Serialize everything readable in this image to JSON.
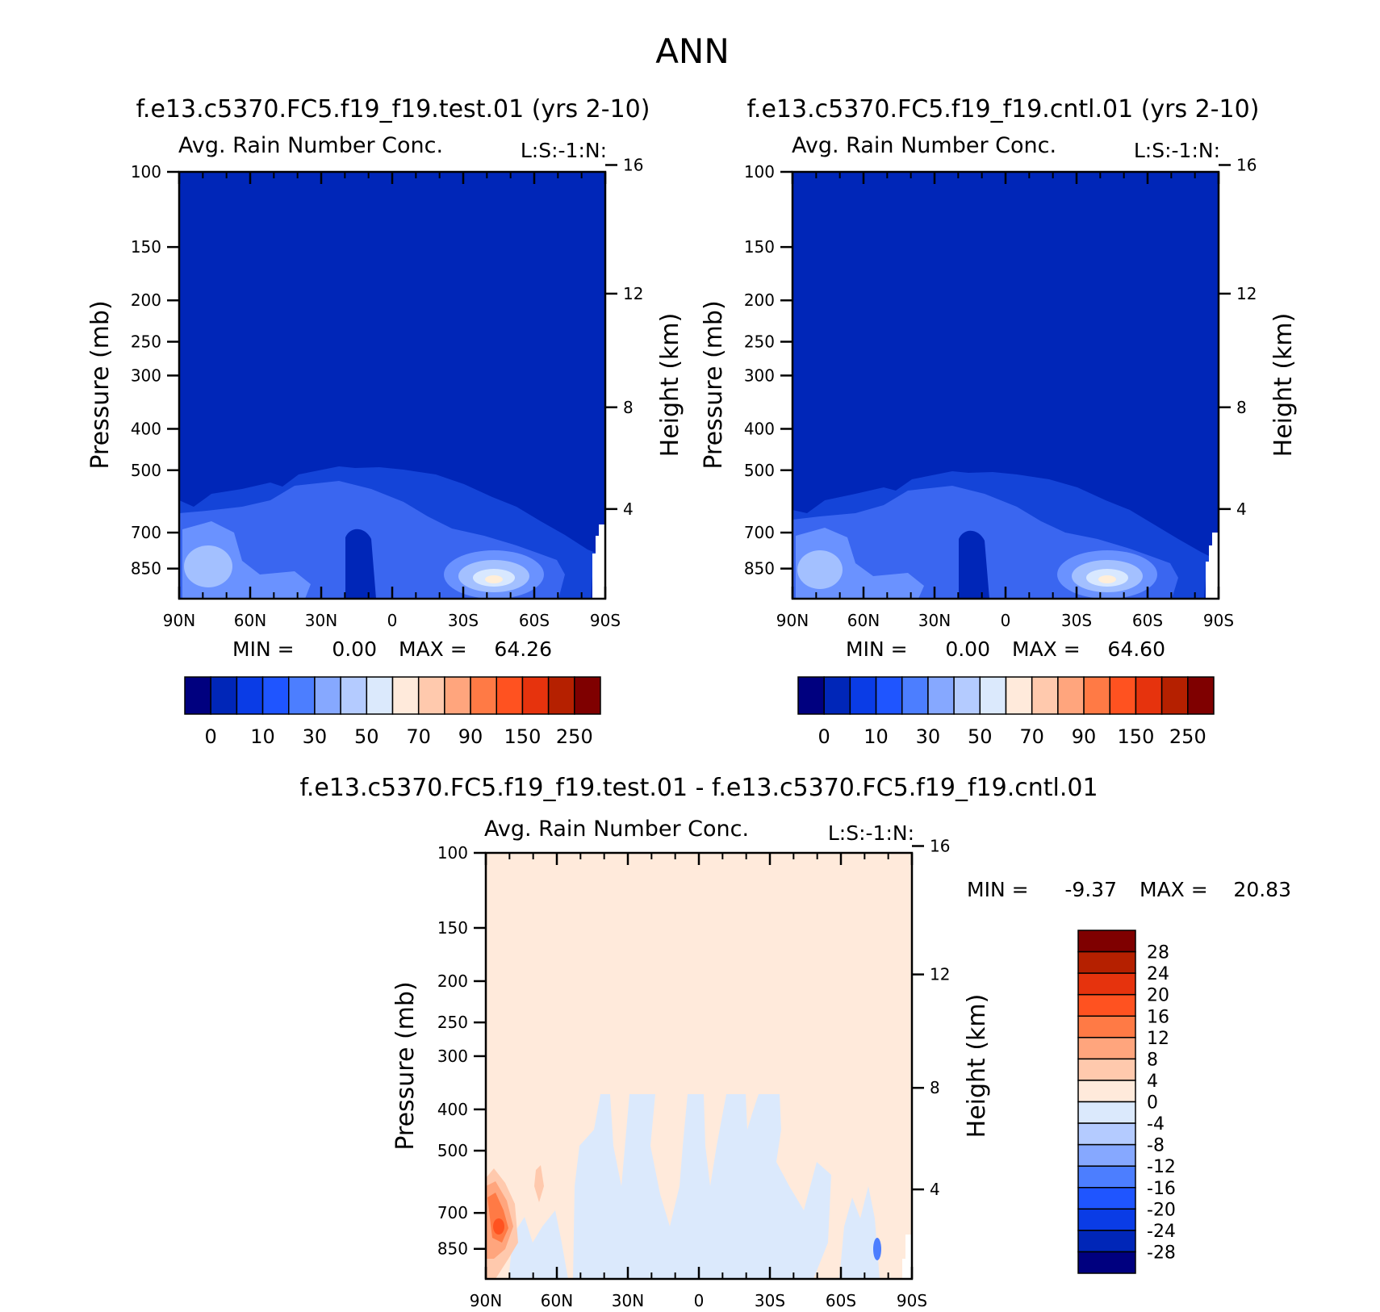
{
  "page_title": "ANN",
  "panels": [
    {
      "case_title": "f.e13.c5370.FC5.f19_f19.test.01 (yrs 2-10)",
      "variable": "Avg. Rain Number Conc.",
      "tag": "L:S:-1:N:",
      "ylabel_left": "Pressure (mb)",
      "ylabel_right": "Height (km)",
      "min_label": "MIN =",
      "min_value": "0.00",
      "max_label": "MAX =",
      "max_value": "64.26"
    },
    {
      "case_title": "f.e13.c5370.FC5.f19_f19.cntl.01 (yrs 2-10)",
      "variable": "Avg. Rain Number Conc.",
      "tag": "L:S:-1:N:",
      "ylabel_left": "Pressure (mb)",
      "ylabel_right": "Height (km)",
      "min_label": "MIN =",
      "min_value": "0.00",
      "max_label": "MAX =",
      "max_value": "64.60"
    },
    {
      "case_title": "f.e13.c5370.FC5.f19_f19.test.01 - f.e13.c5370.FC5.f19_f19.cntl.01",
      "variable": "Avg. Rain Number Conc.",
      "tag": "L:S:-1:N:",
      "ylabel_left": "Pressure (mb)",
      "ylabel_right": "Height (km)",
      "min_label": "MIN =",
      "min_value": "-9.37",
      "max_label": "MAX =",
      "max_value": "20.83"
    }
  ],
  "chart_data": [
    {
      "type": "heatmap",
      "x_ticks": [
        "90N",
        "60N",
        "30N",
        "0",
        "30S",
        "60S",
        "90S"
      ],
      "xlim": [
        90,
        -90
      ],
      "y_ticks_pressure": [
        100,
        150,
        200,
        250,
        300,
        400,
        500,
        700,
        850
      ],
      "y_ticks_height": [
        16,
        12,
        8,
        4
      ],
      "ylim": [
        100,
        1000
      ],
      "y_scale": "log pressure",
      "colorbar_labels": [
        "0",
        "10",
        "30",
        "50",
        "70",
        "90",
        "150",
        "250"
      ],
      "colorbar_colors": [
        "#00007f",
        "#0026b8",
        "#0a3ce6",
        "#1f55ff",
        "#4c7eff",
        "#86a8ff",
        "#b4cbff",
        "#dbe9fc",
        "#ffeadb",
        "#ffc9ad",
        "#ffa57d",
        "#ff7a45",
        "#ff5220",
        "#e6330d",
        "#b52000",
        "#7f0000"
      ],
      "fields": [
        "#0026b8",
        "#1444d8",
        "#3a66f0",
        "#6a92ff",
        "#a3c0ff",
        "#d8e8ff",
        "#ffeed8"
      ],
      "min": 0.0,
      "max": 64.26
    },
    {
      "type": "heatmap",
      "x_ticks": [
        "90N",
        "60N",
        "30N",
        "0",
        "30S",
        "60S",
        "90S"
      ],
      "xlim": [
        90,
        -90
      ],
      "y_ticks_pressure": [
        100,
        150,
        200,
        250,
        300,
        400,
        500,
        700,
        850
      ],
      "y_ticks_height": [
        16,
        12,
        8,
        4
      ],
      "ylim": [
        100,
        1000
      ],
      "y_scale": "log pressure",
      "colorbar_labels": [
        "0",
        "10",
        "30",
        "50",
        "70",
        "90",
        "150",
        "250"
      ],
      "colorbar_colors": [
        "#00007f",
        "#0026b8",
        "#0a3ce6",
        "#1f55ff",
        "#4c7eff",
        "#86a8ff",
        "#b4cbff",
        "#dbe9fc",
        "#ffeadb",
        "#ffc9ad",
        "#ffa57d",
        "#ff7a45",
        "#ff5220",
        "#e6330d",
        "#b52000",
        "#7f0000"
      ],
      "min": 0.0,
      "max": 64.6
    },
    {
      "type": "heatmap",
      "x_ticks": [
        "90N",
        "60N",
        "30N",
        "0",
        "30S",
        "60S",
        "90S"
      ],
      "xlim": [
        90,
        -90
      ],
      "y_ticks_pressure": [
        100,
        150,
        200,
        250,
        300,
        400,
        500,
        700,
        850
      ],
      "y_ticks_height": [
        16,
        12,
        8,
        4
      ],
      "ylim": [
        100,
        1000
      ],
      "y_scale": "log pressure",
      "colorbar_labels": [
        "28",
        "24",
        "20",
        "16",
        "12",
        "8",
        "4",
        "0",
        "-4",
        "-8",
        "-12",
        "-16",
        "-20",
        "-24",
        "-28"
      ],
      "colorbar_colors": [
        "#7f0000",
        "#b52000",
        "#e6330d",
        "#ff5220",
        "#ff7a45",
        "#ffa57d",
        "#ffc9ad",
        "#ffeadb",
        "#dbe9fc",
        "#b4cbff",
        "#86a8ff",
        "#4c7eff",
        "#1f55ff",
        "#0a3ce6",
        "#0026b8",
        "#00007f"
      ],
      "min": -9.37,
      "max": 20.83
    }
  ]
}
